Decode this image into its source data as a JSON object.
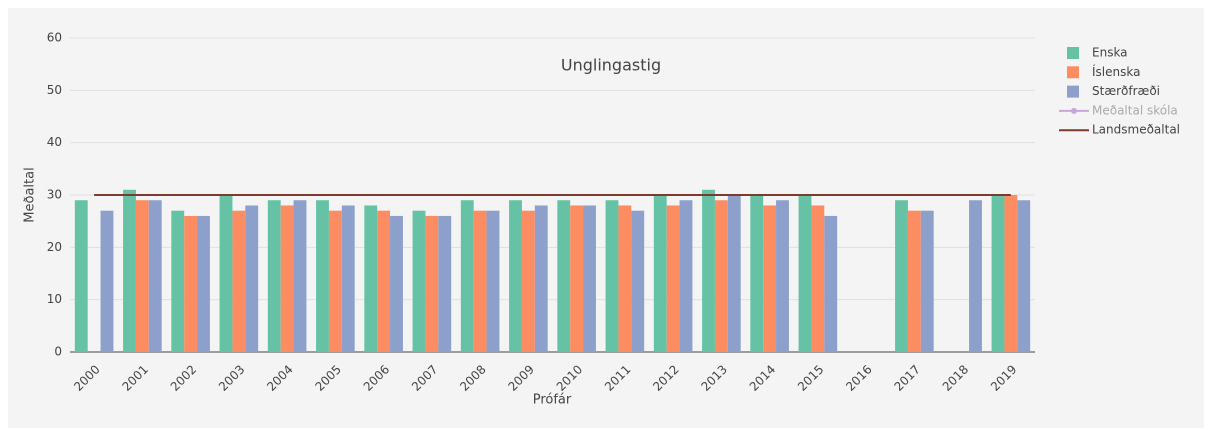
{
  "chart_data": {
    "type": "bar",
    "title": "Unglingastig",
    "x_label": "Prófár",
    "y_label": "Meðaltal",
    "categories": [
      "2000",
      "2001",
      "2002",
      "2003",
      "2004",
      "2005",
      "2006",
      "2007",
      "2008",
      "2009",
      "2010",
      "2011",
      "2012",
      "2013",
      "2014",
      "2015",
      "2016",
      "2017",
      "2018",
      "2019"
    ],
    "series": [
      {
        "name": "Enska",
        "color": "#66c2a5",
        "kind": "bar",
        "values": [
          29,
          31,
          27,
          30,
          29,
          29,
          28,
          27,
          29,
          29,
          29,
          29,
          30,
          31,
          30,
          30,
          null,
          29,
          null,
          30
        ]
      },
      {
        "name": "Íslenska",
        "color": "#fc8d62",
        "kind": "bar",
        "values": [
          null,
          29,
          26,
          27,
          28,
          27,
          27,
          26,
          27,
          27,
          28,
          28,
          28,
          29,
          28,
          28,
          null,
          27,
          null,
          30
        ]
      },
      {
        "name": "Stærðfræði",
        "color": "#8da0cb",
        "kind": "bar",
        "values": [
          27,
          29,
          26,
          28,
          29,
          28,
          26,
          26,
          27,
          28,
          28,
          27,
          29,
          30,
          29,
          26,
          null,
          27,
          29,
          29
        ]
      },
      {
        "name": "Meðaltal skóla",
        "color": "#c5a8d8",
        "kind": "line",
        "visible": false
      },
      {
        "name": "Landsmeðaltal",
        "color": "#7b3b2c",
        "kind": "line",
        "values": [
          30,
          30,
          30,
          30,
          30,
          30,
          30,
          30,
          30,
          30,
          30,
          30,
          30,
          30,
          30,
          30,
          30,
          30,
          30,
          30
        ]
      }
    ],
    "ylim": [
      0,
      60
    ],
    "yticks": [
      0,
      10,
      20,
      30,
      40,
      50,
      60
    ],
    "grid": true
  }
}
